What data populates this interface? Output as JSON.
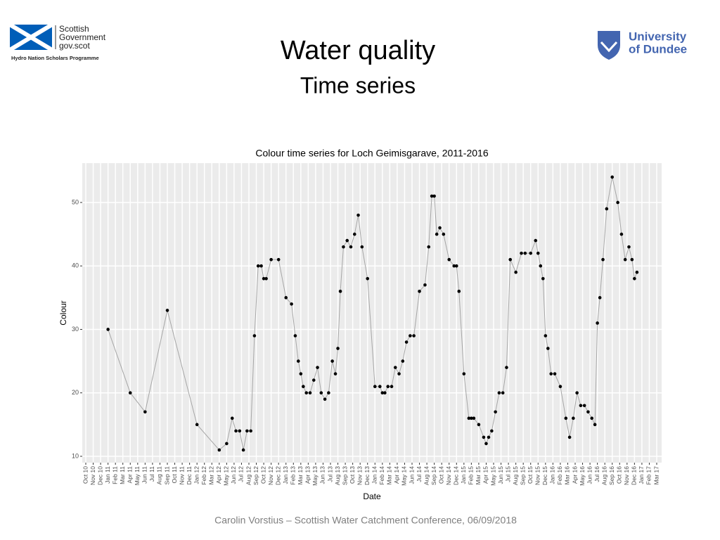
{
  "slide": {
    "title": "Water quality",
    "subtitle": "Time series",
    "footer": "Carolin Vorstius – Scottish Water Catchment Conference, 06/09/2018",
    "logo_left": {
      "line1": "Scottish",
      "line2": "Government",
      "line3": "gov.scot",
      "caption": "Hydro Nation Scholars Programme"
    },
    "logo_right": {
      "line1": "University",
      "line2": "of Dundee"
    }
  },
  "chart_data": {
    "type": "line",
    "title": "Colour time series for Loch Geimisgarave, 2011-2016",
    "x_label": "Date",
    "y_label": "Colour",
    "categories": [
      "Oct 10",
      "Nov 10",
      "Dec 10",
      "Jan 11",
      "Feb 11",
      "Mar 11",
      "Apr 11",
      "May 11",
      "Jun 11",
      "Jul 11",
      "Aug 11",
      "Sep 11",
      "Oct 11",
      "Nov 11",
      "Dec 11",
      "Jan 12",
      "Feb 12",
      "Mar 12",
      "Apr 12",
      "May 12",
      "Jun 12",
      "Jul 12",
      "Aug 12",
      "Sep 12",
      "Oct 12",
      "Nov 12",
      "Dec 12",
      "Jan 13",
      "Feb 13",
      "Mar 13",
      "Apr 13",
      "May 13",
      "Jun 13",
      "Jul 13",
      "Aug 13",
      "Sep 13",
      "Oct 13",
      "Nov 13",
      "Dec 13",
      "Jan 14",
      "Feb 14",
      "Mar 14",
      "Apr 14",
      "May 14",
      "Jun 14",
      "Jul 14",
      "Aug 14",
      "Sep 14",
      "Oct 14",
      "Nov 14",
      "Dec 14",
      "Jan 15",
      "Feb 15",
      "Mar 15",
      "Apr 15",
      "May 15",
      "Jun 15",
      "Jul 15",
      "Aug 15",
      "Sep 15",
      "Oct 15",
      "Nov 15",
      "Dec 15",
      "Jan 16",
      "Feb 16",
      "Mar 16",
      "Apr 16",
      "May 16",
      "Jun 16",
      "Jul 16",
      "Aug 16",
      "Sep 16",
      "Oct 16",
      "Nov 16",
      "Dec 16",
      "Jan 17",
      "Feb 17",
      "Mar 17"
    ],
    "x": [
      "Jan 11",
      "Apr 11",
      "Jun 11",
      "Sep 11",
      "Jan 12",
      "Apr 12",
      "May 12",
      "Jun 12",
      "Jun 12",
      "Jul 12",
      "Jul 12",
      "Aug 12",
      "Aug 12",
      "Sep 12",
      "Sep 12",
      "Oct 12",
      "Oct 12",
      "Oct 12",
      "Nov 12",
      "Dec 12",
      "Jan 13",
      "Feb 13",
      "Feb 13",
      "Mar 13",
      "Mar 13",
      "Mar 13",
      "Apr 13",
      "Apr 13",
      "May 13",
      "May 13",
      "Jun 13",
      "Jun 13",
      "Jul 13",
      "Jul 13",
      "Aug 13",
      "Aug 13",
      "Aug 13",
      "Sep 13",
      "Sep 13",
      "Oct 13",
      "Oct 13",
      "Nov 13",
      "Nov 13",
      "Dec 13",
      "Jan 14",
      "Feb 14",
      "Feb 14",
      "Feb 14",
      "Mar 14",
      "Mar 14",
      "Apr 14",
      "Apr 14",
      "May 14",
      "May 14",
      "Jun 14",
      "Jun 14",
      "Jul 14",
      "Aug 14",
      "Aug 14",
      "Sep 14",
      "Sep 14",
      "Sep 14",
      "Oct 14",
      "Oct 14",
      "Nov 14",
      "Dec 14",
      "Dec 14",
      "Dec 14",
      "Jan 15",
      "Feb 15",
      "Feb 15",
      "Feb 15",
      "Mar 15",
      "Apr 15",
      "Apr 15",
      "Apr 15",
      "May 15",
      "May 15",
      "Jun 15",
      "Jun 15",
      "Jul 15",
      "Jul 15",
      "Aug 15",
      "Sep 15",
      "Sep 15",
      "Oct 15",
      "Nov 15",
      "Nov 15",
      "Nov 15",
      "Dec 15",
      "Dec 15",
      "Dec 15",
      "Jan 16",
      "Jan 16",
      "Feb 16",
      "Mar 16",
      "Mar 16",
      "Apr 16",
      "Apr 16",
      "May 16",
      "May 16",
      "Jun 16",
      "Jun 16",
      "Jul 16",
      "Jul 16",
      "Jul 16",
      "Aug 16",
      "Aug 16",
      "Sep 16",
      "Oct 16",
      "Oct 16",
      "Nov 16",
      "Nov 16",
      "Dec 16",
      "Dec 16",
      "Dec 16"
    ],
    "values": [
      30,
      20,
      17,
      33,
      15,
      11,
      12,
      16,
      14,
      14,
      11,
      14,
      14,
      29,
      40,
      40,
      38,
      38,
      41,
      41,
      35,
      34,
      29,
      25,
      23,
      21,
      20,
      20,
      22,
      24,
      20,
      19,
      20,
      25,
      23,
      27,
      36,
      43,
      44,
      43,
      45,
      48,
      43,
      38,
      21,
      21,
      20,
      20,
      21,
      21,
      24,
      23,
      25,
      28,
      29,
      29,
      36,
      37,
      43,
      51,
      51,
      45,
      46,
      45,
      41,
      40,
      40,
      36,
      23,
      16,
      16,
      16,
      15,
      13,
      12,
      13,
      14,
      17,
      20,
      20,
      24,
      41,
      39,
      42,
      42,
      42,
      44,
      42,
      40,
      38,
      29,
      27,
      23,
      23,
      21,
      16,
      13,
      16,
      20,
      18,
      18,
      17,
      16,
      15,
      31,
      35,
      41,
      49,
      54,
      50,
      45,
      41,
      43,
      41,
      38,
      39
    ],
    "line_color": "#a6a6a6",
    "point_color": "#000000",
    "panel_color": "#ebebeb",
    "grid": true,
    "ylim": [
      9,
      56.2
    ],
    "yticks": [
      10,
      20,
      30,
      40,
      50
    ]
  }
}
